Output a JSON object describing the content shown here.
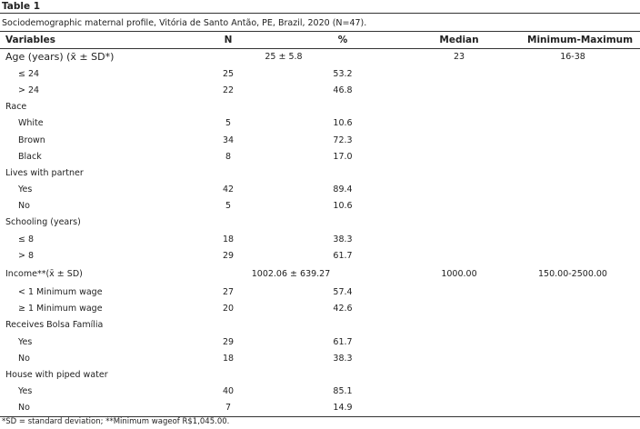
{
  "table_label": "Table 1",
  "caption": "Sociodemographic maternal profile, Vitória de Santo Antão, PE, Brazil, 2020 (N=47).",
  "headers": {
    "variables": "Variables",
    "n": "N",
    "pct": "%",
    "median": "Median",
    "minmax": "Minimum-Maximum"
  },
  "age": {
    "label": "Age (years) (x̄ ± SD*)",
    "n": "25 ± 5.8",
    "median": "23",
    "minmax": "16-38",
    "rows": [
      {
        "label": "≤ 24",
        "n": "25",
        "pct": "53.2"
      },
      {
        "label": "> 24",
        "n": "22",
        "pct": "46.8"
      }
    ]
  },
  "race": {
    "label": "Race",
    "rows": [
      {
        "label": "White",
        "n": "5",
        "pct": "10.6"
      },
      {
        "label": "Brown",
        "n": "34",
        "pct": "72.3"
      },
      {
        "label": "Black",
        "n": "8",
        "pct": "17.0"
      }
    ]
  },
  "partner": {
    "label": "Lives with partner",
    "rows": [
      {
        "label": "Yes",
        "n": "42",
        "pct": "89.4"
      },
      {
        "label": "No",
        "n": "5",
        "pct": "10.6"
      }
    ]
  },
  "schooling": {
    "label": "Schooling (years)",
    "rows": [
      {
        "label": "≤ 8",
        "n": "18",
        "pct": "38.3"
      },
      {
        "label": "> 8",
        "n": "29",
        "pct": "61.7"
      }
    ]
  },
  "income": {
    "label": "Income**(x̄ ± SD)",
    "n": "1002.06 ± 639.27",
    "median": "1000.00",
    "minmax": "150.00-2500.00",
    "rows": [
      {
        "label": "< 1 Minimum wage",
        "n": "27",
        "pct": "57.4"
      },
      {
        "label": "≥ 1 Minimum wage",
        "n": "20",
        "pct": "42.6"
      }
    ]
  },
  "bolsa": {
    "label": "Receives Bolsa Família",
    "rows": [
      {
        "label": "Yes",
        "n": "29",
        "pct": "61.7"
      },
      {
        "label": "No",
        "n": "18",
        "pct": "38.3"
      }
    ]
  },
  "water": {
    "label": "House with piped water",
    "rows": [
      {
        "label": "Yes",
        "n": "40",
        "pct": "85.1"
      },
      {
        "label": "No",
        "n": "7",
        "pct": "14.9"
      }
    ]
  },
  "footnote": "*SD = standard deviation; **Minimum wageof R$1,045.00."
}
